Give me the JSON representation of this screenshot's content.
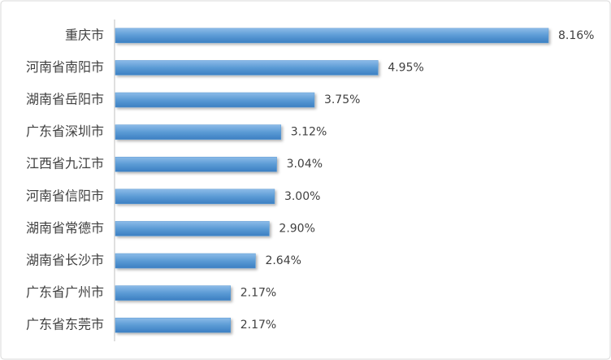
{
  "chart_data": {
    "type": "bar",
    "orientation": "horizontal",
    "categories": [
      "重庆市",
      "河南省南阳市",
      "湖南省岳阳市",
      "广东省深圳市",
      "江西省九江市",
      "河南省信阳市",
      "湖南省常德市",
      "湖南省长沙市",
      "广东省广州市",
      "广东省东莞市"
    ],
    "values": [
      8.16,
      4.95,
      3.75,
      3.12,
      3.04,
      3.0,
      2.9,
      2.64,
      2.17,
      2.17
    ],
    "value_labels": [
      "8.16%",
      "4.95%",
      "3.75%",
      "3.12%",
      "3.04%",
      "3.00%",
      "2.90%",
      "2.64%",
      "2.17%",
      "2.17%"
    ],
    "color": "#5b9bd5"
  }
}
